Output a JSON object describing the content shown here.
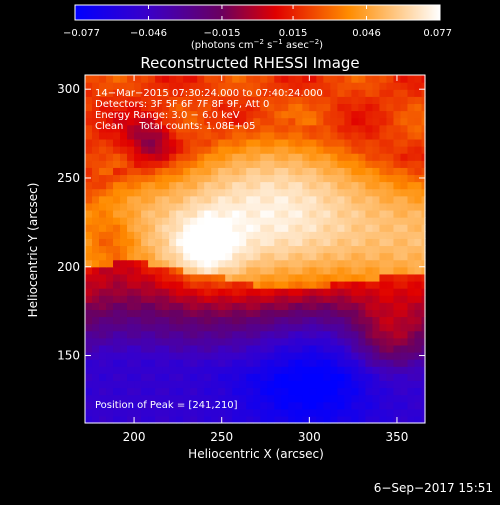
{
  "chart_data": {
    "type": "heatmap",
    "title": "Reconstructed RHESSI Image",
    "xlabel": "Heliocentric X (arcsec)",
    "ylabel": "Heliocentric Y (arcsec)",
    "xlim": [
      172,
      366
    ],
    "ylim": [
      112,
      308
    ],
    "x_ticks": [
      200,
      250,
      300,
      350
    ],
    "y_ticks": [
      150,
      200,
      250,
      300
    ],
    "colorbar": {
      "colormap": "red-temperature",
      "range": [
        -0.077,
        0.077
      ],
      "tick_values": [
        -0.077,
        -0.046,
        -0.015,
        0.015,
        0.046,
        0.077
      ],
      "tick_labels": [
        "−0.077",
        "−0.046",
        "−0.015",
        "0.015",
        "0.046",
        "0.077"
      ],
      "unit_parts": [
        "(photons cm",
        "−2",
        " s",
        "−1",
        " asec",
        "−2",
        ")"
      ]
    },
    "annotations": [
      "14−Mar−2015 07:30:24.000 to 07:40:24.000",
      "Detectors: 3F 5F 6F 7F 8F 9F, Att 0",
      "Energy Range: 3.0 − 6.0 keV",
      "Clean     Total counts: 1.08E+05"
    ],
    "peak_label": "Position of Peak = [241,210]",
    "timestamp": "6−Sep−2017 15:51",
    "grid": false,
    "peak": {
      "x": 241,
      "y": 210,
      "value": 0.077
    },
    "features": [
      {
        "kind": "bright-ridge",
        "x_range": [
          200,
          330
        ],
        "y_range": [
          205,
          260
        ]
      },
      {
        "kind": "dark-region",
        "center": [
          300,
          145
        ],
        "value": -0.077
      },
      {
        "kind": "dark-border",
        "y": 185
      }
    ],
    "contour_levels": {
      "x": [
        172,
        190,
        210,
        230,
        250,
        270,
        290,
        310,
        330,
        350,
        366
      ],
      "ridge_bottom_y": [
        198,
        203,
        202,
        198,
        195,
        190,
        188,
        190,
        193,
        195,
        195
      ],
      "ridge_top_y": [
        225,
        235,
        242,
        248,
        258,
        262,
        262,
        258,
        250,
        242,
        238
      ]
    }
  }
}
